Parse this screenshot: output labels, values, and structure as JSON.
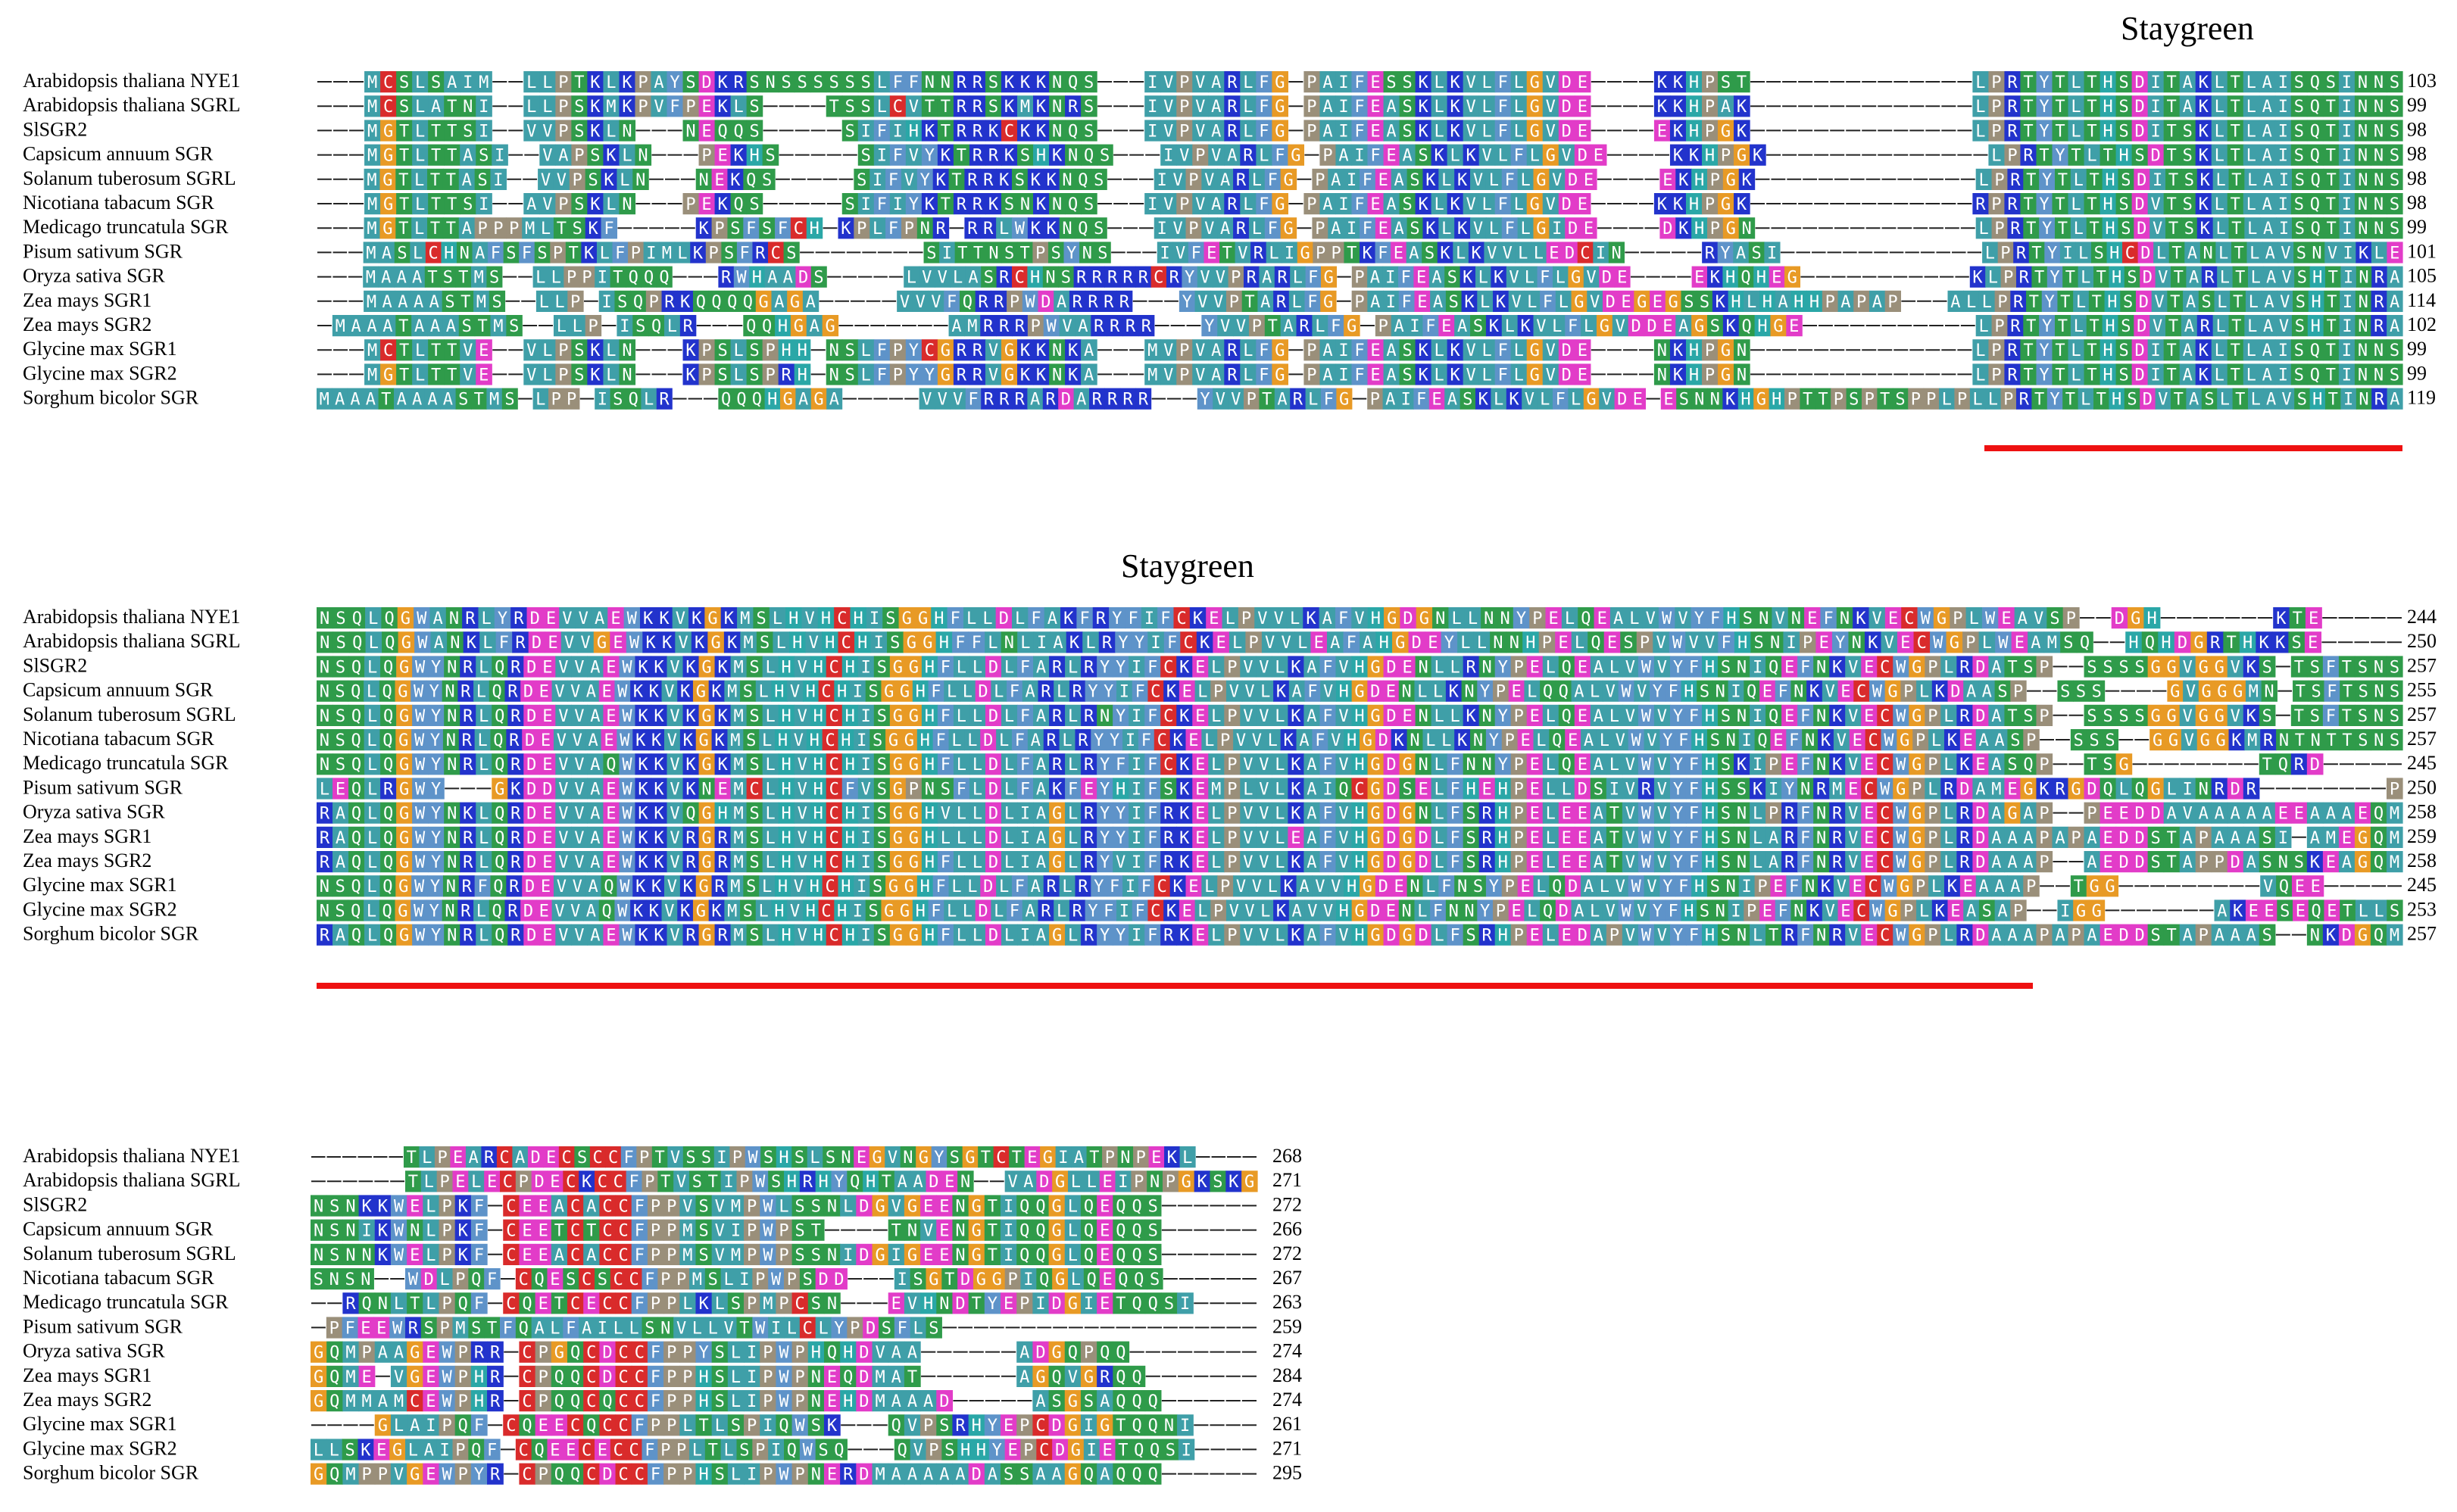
{
  "palette": {
    "A": "#3f9fa8",
    "V": "#3f9fa8",
    "I": "#3f9fa8",
    "L": "#3f9fa8",
    "M": "#3f9fa8",
    "F": "#5e93c9",
    "W": "#5e93c9",
    "Y": "#5e93c9",
    "C": "#d92b2b",
    "G": "#e89a25",
    "P": "#9a8f7a",
    "H": "#2aa7a7",
    "S": "#2f9b4a",
    "T": "#2f9b4a",
    "N": "#2f9b4a",
    "Q": "#2f9b4a",
    "D": "#e23cc8",
    "E": "#e23cc8",
    "K": "#2233cc",
    "R": "#2233cc",
    "X": "#7a9bbf"
  },
  "annotation_color": "#ee1111",
  "blocks": [
    {
      "heading": "Staygreen",
      "sequences": [
        {
          "name": "Arabidopsis thaliana NYE1",
          "seq": "---MCSLSAIM--LLPTKLKPAYSDKRSNSSSSSSLFFNNRRSKKKNQS---IVPVARLFG-PAIFESSKLKVLFLGVDE----KKHPST--------------LPRTYTLTHSDITAKLTLAISQSINNS",
          "end": "103"
        },
        {
          "name": "Arabidopsis thaliana SGRL",
          "seq": "---MCSLATNI--LLPSKMKPVFPEKLS----TSSLCVTTRRSKMKNRS---IVPVARLFG-PAIFEASKLKVLFLGVDE----KKHPAK--------------LPRTYTLTHSDITAKLTLAISQTINNS",
          "end": "99"
        },
        {
          "name": "SlSGR2",
          "seq": "---MGTLTTSI--VVPSKLN---NEQQS-----SIFIHKTRRKCKKNQS---IVPVARLFG-PAIFEASKLKVLFLGVDE----EKHPGK--------------LPRTYTLTHSDITSKLTLAISQTINNS",
          "end": "98"
        },
        {
          "name": "Capsicum annuum SGR",
          "seq": "---MGTLTTASI--VAPSKLN---PEKHS-----SIFVYKTRRKSHKNQS---IVPVARLFG-PAIFEASKLKVLFLGVDE----KKHPGK--------------LPRTYTLTHSDTSKLTLAISQTINNS",
          "end": "98"
        },
        {
          "name": "Solanum tuberosum SGRL",
          "seq": "---MGTLTTASI--VVPSKLN---NEKQS-----SIFVYKTRRKSKKNQS---IVPVARLFG-PAIFEASKLKVLFLGVDE----EKHPGK--------------LPRTYTLTHSDITSKLTLAISQTINNS",
          "end": "98"
        },
        {
          "name": "Nicotiana tabacum SGR",
          "seq": "---MGTLTTSI--AVPSKLN---PEKQS-----SIFIYKTRRKSNKNQS---IVPVARLFG-PAIFEASKLKVLFLGVDE----KKHPGK--------------RPRTYTLTHSDVTSKLTLAISQTINNS",
          "end": "98"
        },
        {
          "name": "Medicago truncatula SGR",
          "seq": "---MGTLTTAPPPMLTSKF-----KPSFSFCH-KPLFPNR-RRLWKKNQS---IVPVARLFG-PAIFEASKLKVLFLGIDE----DKHPGN--------------LPRTYTLTHSDVTSKLTLAISQTINNS",
          "end": "99"
        },
        {
          "name": "Pisum sativum SGR",
          "seq": "---MASLCHNAFSFSPTKLFPIMLKPSFRCS--------SITTNSTPSYNS---IVFETVRLIGPPTKFEASKLKVVLLEDCIN-----RYASI-------------LPRTYILSHCDLTANLTLAVSNVIKLE",
          "end": "101"
        },
        {
          "name": "Oryza sativa SGR",
          "seq": "---MAAATSTMS--LLPPITQQQ---RWHAADS-----LVVLASRCHNSRRRRRCRYVVPRARLFG-PAIFEASKLKVLFLGVDE----EKHQHEG-----------KLPRTYTLTHSDVTARLTLAVSHTINRA",
          "end": "105"
        },
        {
          "name": "Zea mays SGR1",
          "seq": "---MAAAASTMS--LLP-ISQPRKQQQQGAGA-----VVVFQRRPWDARRRR---YVVPTARLFG-PAIFEASKLKVLFLGVDEGEGSSKHLHAHHPAPAP---ALLPRTYTLTHSDVTASLTLAVSHTINRA",
          "end": "114"
        },
        {
          "name": "Zea mays SGR2",
          "seq": "-MAAATAAASTMS--LLP-ISQLR---QQHGAG-------AMRRRPWVARRRR---YVVPTARLFG-PAIFEASKLKVLFLGVDDEAGSKQHGE-----------LPRTYTLTHSDVTARLTLAVSHTINRA",
          "end": "102"
        },
        {
          "name": "Glycine max SGR1",
          "seq": "---MCTLTTVE--VLPSKLN---KPSLSPHH-NSLFPYCGRRVGKKNKA---MVPVARLFG-PAIFEASKLKVLFLGVDE----NKHPGN--------------LPRTYTLTHSDITAKLTLAISQTINNS",
          "end": "99"
        },
        {
          "name": "Glycine max SGR2",
          "seq": "---MGTLTTVE--VLPSKLN---KPSLSPRH-NSLFPYYGRRVGKKNKA---MVPVARLFG-PAIFEASKLKVLFLGVDE----NKHPGN--------------LPRTYTLTHSDITAKLTLAISQTINNS",
          "end": "99"
        },
        {
          "name": "Sorghum bicolor SGR",
          "seq": "MAAATAAAASTMS-LPP-ISQLR---QQQHGAGA-----VVVFRRRARDARRRR---YVVPTARLFG-PAIFEASKLKVLFLGVDE-ESNNKHGHPTTPSPTSPPLPLLPRTYTLTHSDVTASLTLAVSHTINRA",
          "end": "119"
        }
      ]
    },
    {
      "heading": "Staygreen",
      "sequences": [
        {
          "name": "Arabidopsis thaliana NYE1",
          "seq": "NSQLQGWANRLYRDEVVAEWKKVKGKMSLHVHCHISGGHFLLDLFAKFRYFIFCKELPVVLKAFVHGDGNLLNNYPELQEALVWVYFHSNVNEFNKVECWGPLWEAVSP--DGH-------KTE-----",
          "end": "244"
        },
        {
          "name": "Arabidopsis thaliana SGRL",
          "seq": "NSQLQGWANKLFRDEVVGEWKKVKGKMSLHVHCHISGGHFFLNLIAKLRYYIFCKELPVVLEAFAHGDEYLLNNHPELQESPVWVVFHSNIPEYNKVECWGPLWEAMSQ--HQHDGRTHKKSE-----",
          "end": "250"
        },
        {
          "name": "SlSGR2",
          "seq": "NSQLQGWYNRLQRDEVVAEWKKVKGKMSLHVHCHISGGHFLLDLFARLRYYIFCKELPVVLKAFVHGDENLLRNYPELQEALVWVYFHSNIQEFNKVECWGPLRDATSP--SSSSGGVGGVKS-TSFTSNS",
          "end": "257"
        },
        {
          "name": "Capsicum annuum SGR",
          "seq": "NSQLQGWYNRLQRDEVVAEWKKVKGKMSLHVHCHISGGHFLLDLFARLRYYIFCKELPVVLKAFVHGDENLLKNYPELQQALVWVYFHSNIQEFNKVECWGPLKDAASP--SSS----GVGGGMN-TSFTSNS",
          "end": "255"
        },
        {
          "name": "Solanum tuberosum SGRL",
          "seq": "NSQLQGWYNRLQRDEVVAEWKKVKGKMSLHVHCHISGGHFLLDLFARLRNYIFCKELPVVLKAFVHGDENLLKNYPELQEALVWVYFHSNIQEFNKVECWGPLRDATSP--SSSSGGVGGVKS-TSFTSNS",
          "end": "257"
        },
        {
          "name": "Nicotiana tabacum SGR",
          "seq": "NSQLQGWYNRLQRDEVVAEWKKVKGKMSLHVHCHISGGHFLLDLFARLRYYIFCKELPVVLKAFVHGDKNLLKNYPELQEALVWVYFHSNIQEFNKVECWGPLKEAASP--SSS--GGVGGKMRNTNTTSNS",
          "end": "257"
        },
        {
          "name": "Medicago truncatula SGR",
          "seq": "NSQLQGWYNRLQRDEVVAQWKKVKGKMSLHVHCHISGGHFLLDLFARLRYFIFCKELPVVLKAFVHGDGNLFNNYPELQEALVWVYFHSKIPEFNKVECWGPLKEASQP--TSG--------TQRD-----",
          "end": "245"
        },
        {
          "name": "Pisum sativum SGR",
          "seq": "LEQLRGWY---GKDDVVAEWKKVKNEMCLHVHCFVSGPNSFLDLFAKFEYHIFSKEMPLVLKAIQCGDSELFHEHPELLDSIVRVYFHSSKIYNRMECWGPLRDAMEGKRGDQLQGLINRDR--------P",
          "end": "250"
        },
        {
          "name": "Oryza sativa SGR",
          "seq": "RAQLQGWYNKLQRDEVVAEWKKVQGHMSLHVHCHISGGHVLLDLIAGLRYYIFRKELPVVLKAFVHGDGNLFSRHPELEEATVWVYFHSNLPRFNRVECWGPLRDAGAP--PEEDDAVAAAAAEEAAAEQM",
          "end": "258"
        },
        {
          "name": "Zea mays SGR1",
          "seq": "RAQLQGWYNRLQRDEVVAEWKKVRGRMSLHVHCHISGGHLLLDLIAGLRYYIFRKELPVVLEAFVHGDGDLFSRHPELEEATVWVYFHSNLARFNRVECWGPLRDAAAPAPAEDDSTAPAAASI-AMEGQM",
          "end": "259"
        },
        {
          "name": "Zea mays SGR2",
          "seq": "RAQLQGWYNRLQRDEVVAEWKKVRGRMSLHVHCHISGGHFLLDLIAGLRYVIFRKELPVVLKAFVHGDGDLFSRHPELEEATVWVYFHSNLARFNRVECWGPLRDAAAP--AEDDSTAPPDASNSKEAGQM",
          "end": "258"
        },
        {
          "name": "Glycine max SGR1",
          "seq": "NSQLQGWYNRFQRDEVVAQWKKVKGRMSLHVHCHISGGHFLLDLFARLRYFIFCKELPVVLKAVVHGDENLFNSYPELQDALVWVYFHSNIPEFNKVECWGPLKEAAAP--TGG---------VQEE-----",
          "end": "245"
        },
        {
          "name": "Glycine max SGR2",
          "seq": "NSQLQGWYNRLQRDEVVAQWKKVKGKMSLHVHCHISGGHFLLDLFARLRYFIFCKELPVVLKAVVHGDENLFNNYPELQDALVWVYFHSNIPEFNKVECWGPLKEASAP--IGG-------AKEESEQETLLS",
          "end": "253"
        },
        {
          "name": "Sorghum bicolor SGR",
          "seq": "RAQLQGWYNRLQRDEVVAEWKKVRGRMSLHVHCHISGGHFLLDLIAGLRYYIFRKELPVVLKAFVHGDGDLFSRHPELEDAPVWVYFHSNLTRFNRVECWGPLRDAAAPAPAEDDSTAPAAAS--NKDGQM",
          "end": "257"
        }
      ]
    },
    {
      "heading": "",
      "sequences": [
        {
          "name": "Arabidopsis thaliana NYE1",
          "seq": "------TLPEARCADECSCCFPTVSSIPWSHSLSNEGVNGYSGTCTEGIATPNPEKL----",
          "end": "268"
        },
        {
          "name": "Arabidopsis thaliana SGRL",
          "seq": "------TLPELECPDECKCCFPTVSTIPWSHRHYQHTAADEN--VADGLLEIPNPGKSKG",
          "end": "271"
        },
        {
          "name": "SlSGR2",
          "seq": "NSNKKWELPKF-CEEACACCFPPVSVMPWLSSNLDGVGEENGTIQQGLQEQQS------",
          "end": "272"
        },
        {
          "name": "Capsicum annuum SGR",
          "seq": "NSNIKWNLPKF-CEETCTCCFPPMSVIPWPST----TNVENGTIQQGLQEQQS------",
          "end": "266"
        },
        {
          "name": "Solanum tuberosum SGRL",
          "seq": "NSNNKWELPKF-CEEACACCFPPMSVMPWPSSNIDGIGEENGTIQQGLQEQQS------",
          "end": "272"
        },
        {
          "name": "Nicotiana tabacum SGR",
          "seq": "SNSN--WDLPQF-CQESCSCCFPPMSLIPWPSDD---ISGTDGGPIQGLQEQQS------",
          "end": "267"
        },
        {
          "name": "Medicago truncatula SGR",
          "seq": "--RQNLTLPQF-CQETCECCFPPLKLSPMPCSN---EVHNDTYEPIDGIETQQSI----",
          "end": "263"
        },
        {
          "name": "Pisum sativum SGR",
          "seq": "-PFEEWRSPMSTFQALFAILLSNVLLVTWILCLYPDSFLS--------------------",
          "end": "259"
        },
        {
          "name": "Oryza sativa SGR",
          "seq": "GQMPAAGEWPRR-CPGQCDCCFPPYSLIPWPHQHDVAA------ADGQPQQ--------",
          "end": "274"
        },
        {
          "name": "Zea mays SGR1",
          "seq": "GQME-VGEWPHR-CPQQCDCCFPPHSLIPWPNEQDMAT------AGQVGRQQ-------",
          "end": "284"
        },
        {
          "name": "Zea mays SGR2",
          "seq": "GQMMAMCEWPHR-CPQQCQCCFPPHSLIPWPNEHDMAAAD-----ASGSAQQQ------",
          "end": "274"
        },
        {
          "name": "Glycine max SGR1",
          "seq": "----GLAIPQF-CQEECQCCFPPLTLSPIQWSK---QVPSRHYEPCDGIGTQQNI----",
          "end": "261"
        },
        {
          "name": "Glycine max SGR2",
          "seq": "LLSKEGLAIPQF-CQEECECCFPPLTLSPIQWSQ---QVPSHHYEPCDGIETQQSI----",
          "end": "271"
        },
        {
          "name": "Sorghum bicolor SGR",
          "seq": "GQMPPVGEWPYR-CPQQCDCCFPPHSLIPWPNERDMAAAAADASSAAGQAQQQ------",
          "end": "295"
        }
      ]
    }
  ]
}
